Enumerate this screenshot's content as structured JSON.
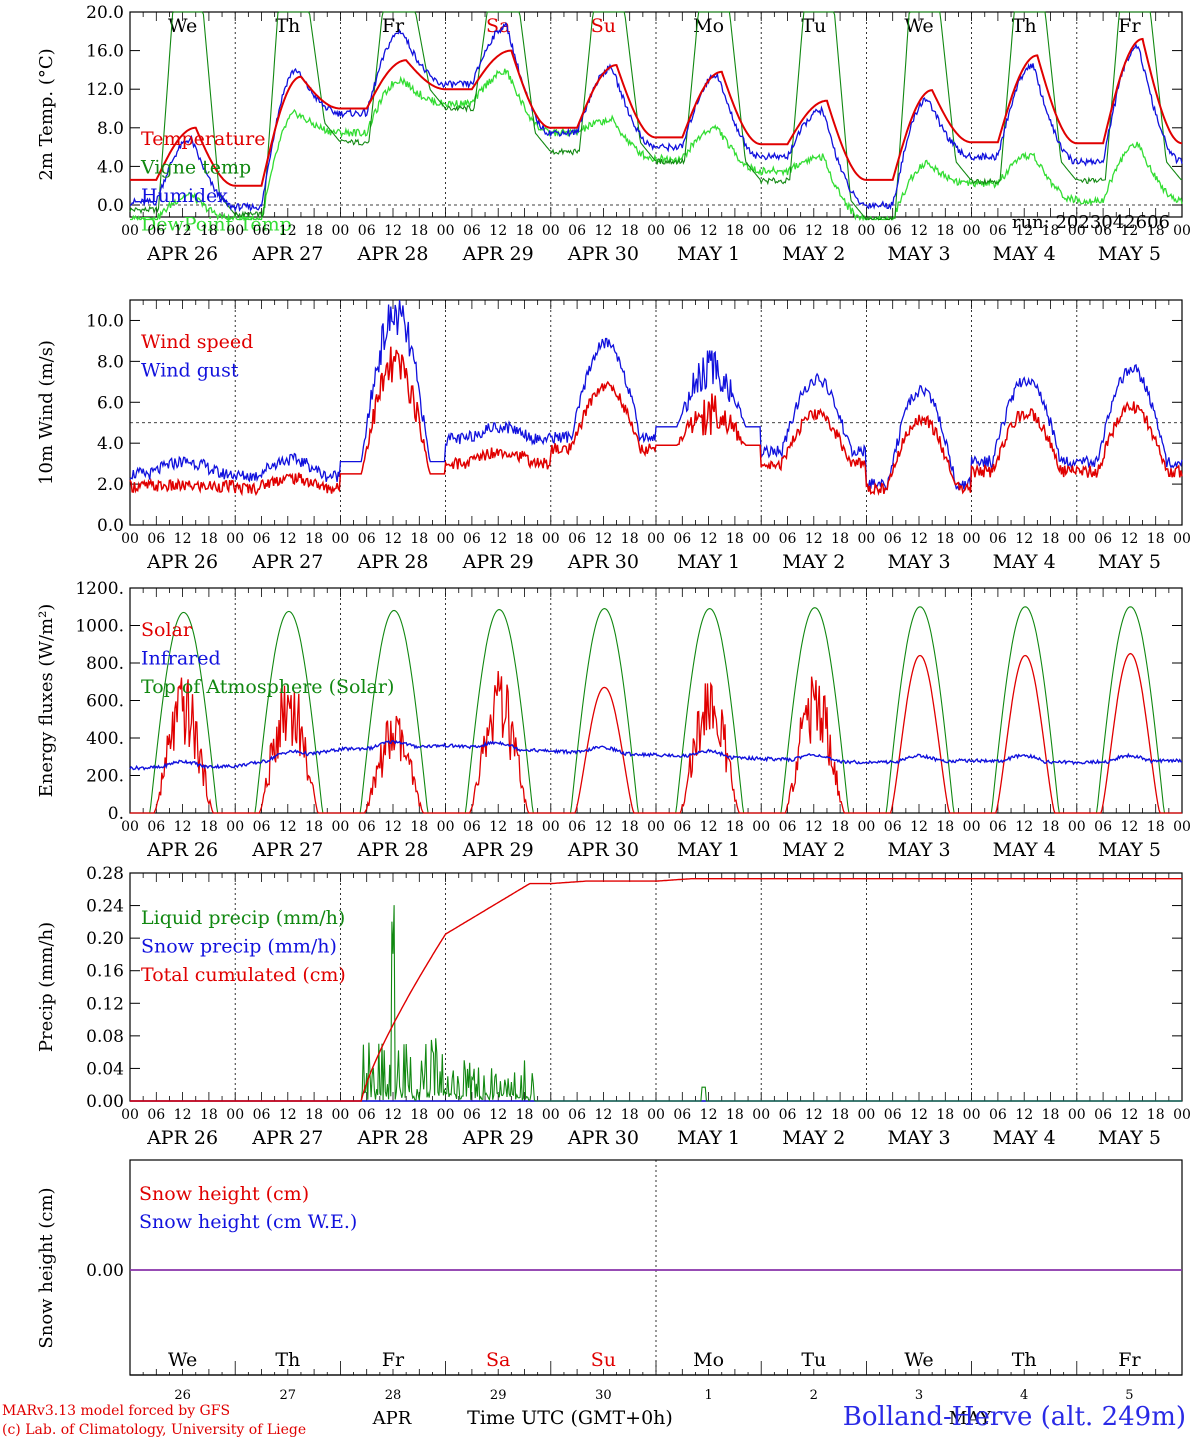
{
  "run_label": "run: 2023042606",
  "hour_ticks": [
    "00",
    "06",
    "12",
    "18"
  ],
  "final_tick": "00",
  "date_labels": [
    "APR 26",
    "APR 27",
    "APR 28",
    "APR 29",
    "APR 30",
    "MAY  1",
    "MAY  2",
    "MAY  3",
    "MAY  4",
    "MAY  5"
  ],
  "weekdays": [
    {
      "label": "We",
      "color": "#000000"
    },
    {
      "label": "Th",
      "color": "#000000"
    },
    {
      "label": "Fr",
      "color": "#000000"
    },
    {
      "label": "Sa",
      "color": "#e00000"
    },
    {
      "label": "Su",
      "color": "#e00000"
    },
    {
      "label": "Mo",
      "color": "#000000"
    },
    {
      "label": "Tu",
      "color": "#000000"
    },
    {
      "label": "We",
      "color": "#000000"
    },
    {
      "label": "Th",
      "color": "#000000"
    },
    {
      "label": "Fr",
      "color": "#000000"
    }
  ],
  "day_numbers": [
    "26",
    "27",
    "28",
    "29",
    "30",
    "1",
    "2",
    "3",
    "4",
    "5"
  ],
  "bottom_month_apr": "APR",
  "bottom_month_may": "MAY",
  "time_axis_label": "Time UTC (GMT+0h)",
  "credit_line1": "MARv3.13 model forced by GFS",
  "credit_line2": "(c) Lab. of Climatology, University of Liege",
  "station": "Bolland-Herve (alt. 249m)",
  "colors": {
    "red": "#e00000",
    "green": "#118811",
    "blue": "#1111dd",
    "lightgreen": "#33dd33",
    "purple": "#8833aa"
  },
  "chart_data": [
    {
      "type": "line",
      "ylabel": "2m Temp. (°C)",
      "ylim": [
        0,
        20
      ],
      "yticks": [
        "0.0",
        "4.0",
        "8.0",
        "12.0",
        "16.0",
        "20.0"
      ],
      "reference_line": 0,
      "x": [
        "2023-04-26",
        "2023-04-27",
        "2023-04-28",
        "2023-04-29",
        "2023-04-30",
        "2023-05-01",
        "2023-05-02",
        "2023-05-03",
        "2023-05-04",
        "2023-05-05",
        "2023-05-06"
      ],
      "series": [
        {
          "name": "Temperature",
          "color": "#e00000",
          "values": [
            2.8,
            2.5,
            11.5,
            14.5,
            8.3,
            7.8,
            6.5,
            3.2,
            7.2,
            6.7,
            11.8
          ],
          "daily_max": [
            8.0,
            13.3,
            15.0,
            16.0,
            14.5,
            13.8,
            10.8,
            11.9,
            15.5,
            17.2
          ],
          "daily_min": [
            2.6,
            2.0,
            10.0,
            12.0,
            8.0,
            7.0,
            6.3,
            2.6,
            6.5,
            6.4
          ]
        },
        {
          "name": "Vigne temp",
          "color": "#118811",
          "values": [
            0.0,
            -0.5,
            8.0,
            11.0,
            5.8,
            5.0,
            3.0,
            -1.5,
            3.3,
            2.8,
            7.5
          ],
          "daily_max": [
            20.0,
            20.0,
            20.0,
            20.0,
            20.0,
            20.0,
            20.0,
            20.0,
            20.0,
            20.0
          ],
          "daily_min": [
            -0.5,
            -1.0,
            6.5,
            10.0,
            5.5,
            4.5,
            2.5,
            -1.5,
            2.5,
            2.5
          ]
        },
        {
          "name": "Humidex",
          "color": "#1111dd",
          "values": [
            0.5,
            0.2,
            10.5,
            13.5,
            8.0,
            6.5,
            5.5,
            0.0,
            5.5,
            4.5,
            10.0
          ],
          "daily_max": [
            6.8,
            14.0,
            18.0,
            18.5,
            14.2,
            13.5,
            9.8,
            11.0,
            14.5,
            16.5
          ],
          "daily_min": [
            0.3,
            -0.2,
            9.5,
            12.5,
            7.5,
            6.0,
            5.0,
            0.0,
            5.0,
            4.5
          ]
        },
        {
          "name": "DewPoint Temp",
          "color": "#33dd33",
          "values": [
            -1.2,
            -1.0,
            8.0,
            11.0,
            8.0,
            5.0,
            4.0,
            -1.5,
            2.5,
            1.5,
            2.0
          ],
          "daily_max": [
            1.0,
            9.5,
            13.0,
            13.8,
            8.8,
            8.0,
            5.0,
            4.3,
            5.2,
            6.3
          ],
          "daily_min": [
            -1.5,
            -1.5,
            7.5,
            10.5,
            7.5,
            4.8,
            3.5,
            -1.5,
            2.2,
            0.5
          ]
        }
      ]
    },
    {
      "type": "line",
      "ylabel": "10m Wind (m/s)",
      "ylim": [
        0,
        11
      ],
      "yticks": [
        "0.0",
        "2.0",
        "4.0",
        "6.0",
        "8.0",
        "10.0"
      ],
      "reference_line": 5,
      "series": [
        {
          "name": "Wind speed",
          "color": "#e00000",
          "values": [
            1.9,
            1.8,
            2.5,
            3.0,
            3.7,
            3.9,
            3.0,
            1.8,
            2.6,
            2.6,
            2.4
          ],
          "daily_max": [
            1.9,
            2.3,
            7.8,
            3.6,
            6.8,
            5.5,
            5.4,
            5.2,
            5.5,
            5.8
          ]
        },
        {
          "name": "Wind gust",
          "color": "#1111dd",
          "values": [
            2.5,
            2.4,
            3.1,
            4.2,
            4.3,
            4.8,
            3.6,
            2.0,
            3.1,
            3.1,
            3.0
          ],
          "daily_max": [
            3.1,
            3.2,
            10.2,
            4.8,
            8.9,
            7.6,
            7.1,
            6.6,
            7.1,
            7.6
          ]
        }
      ]
    },
    {
      "type": "line",
      "ylabel": "Energy fluxes (W/m²)",
      "ylim": [
        0,
        1200
      ],
      "yticks": [
        "0.",
        "200.",
        "400.",
        "600.",
        "800.",
        "1000.",
        "1200."
      ],
      "series": [
        {
          "name": "Solar",
          "color": "#e00000",
          "daily_max": [
            750,
            790,
            550,
            770,
            670,
            780,
            790,
            840,
            840,
            850
          ]
        },
        {
          "name": "Infrared",
          "color": "#1111dd",
          "values": [
            240,
            250,
            340,
            360,
            330,
            310,
            290,
            270,
            280,
            270,
            280
          ]
        },
        {
          "name": "Top of Atmosphere (Solar)",
          "color": "#118811",
          "daily_max": [
            1070,
            1075,
            1080,
            1085,
            1090,
            1090,
            1095,
            1100,
            1100,
            1100
          ]
        }
      ]
    },
    {
      "type": "line",
      "ylabel": "Precip (mm/h)",
      "ylim": [
        0,
        0.28
      ],
      "yticks": [
        "0.00",
        "0.04",
        "0.08",
        "0.12",
        "0.16",
        "0.20",
        "0.24",
        "0.28"
      ],
      "series": [
        {
          "name": "Liquid precip (mm/h)",
          "color": "#118811",
          "daily_max": [
            0,
            0,
            0.185,
            0.055,
            0,
            0.017,
            0,
            0,
            0,
            0
          ]
        },
        {
          "name": "Snow precip (mm/h)",
          "color": "#1111dd",
          "daily_max": [
            0,
            0,
            0,
            0,
            0,
            0,
            0,
            0,
            0,
            0
          ]
        },
        {
          "name": "Total cumulated (cm)",
          "color": "#e00000",
          "values": [
            0,
            0,
            0,
            0.205,
            0.267,
            0.27,
            0.273,
            0.273,
            0.273,
            0.273,
            0.273
          ]
        }
      ]
    },
    {
      "type": "line",
      "ylabel": "Snow height (cm)",
      "yticks": [
        "0.00"
      ],
      "series": [
        {
          "name": "Snow height (cm)",
          "color": "#e00000",
          "values": [
            0,
            0,
            0,
            0,
            0,
            0,
            0,
            0,
            0,
            0,
            0
          ]
        },
        {
          "name": "Snow height (cm W.E.)",
          "color": "#1111dd",
          "values": [
            0,
            0,
            0,
            0,
            0,
            0,
            0,
            0,
            0,
            0,
            0
          ]
        }
      ]
    }
  ]
}
